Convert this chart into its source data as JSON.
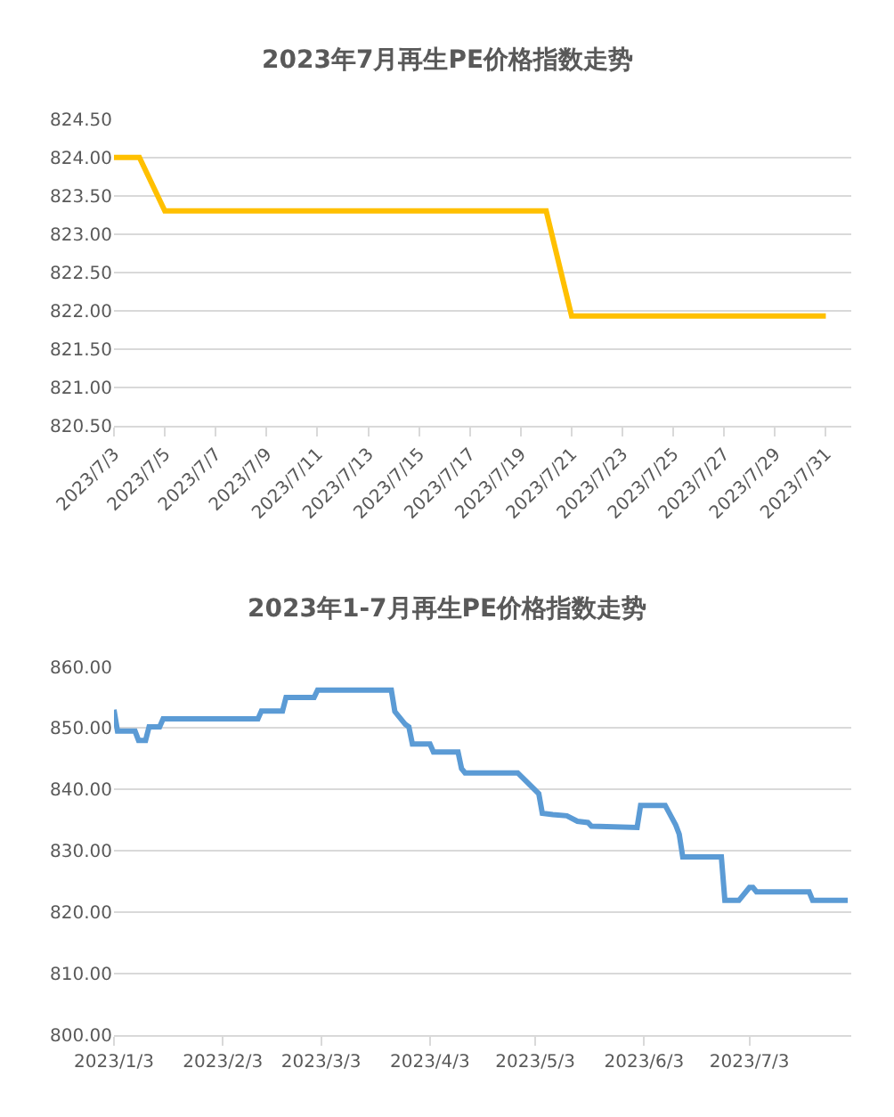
{
  "chart_data": [
    {
      "type": "line",
      "title": "2023年7月再生PE价格指数走势",
      "x": [
        "2023-07-03",
        "2023-07-04",
        "2023-07-05",
        "2023-07-06",
        "2023-07-07",
        "2023-07-10",
        "2023-07-11",
        "2023-07-12",
        "2023-07-13",
        "2023-07-14",
        "2023-07-17",
        "2023-07-18",
        "2023-07-19",
        "2023-07-20",
        "2023-07-21",
        "2023-07-24",
        "2023-07-25",
        "2023-07-26",
        "2023-07-27",
        "2023-07-28",
        "2023-07-31"
      ],
      "series": [
        {
          "color": "#ffc000",
          "values": [
            824.0,
            824.0,
            823.3,
            823.3,
            823.3,
            823.3,
            823.3,
            823.3,
            823.3,
            823.3,
            823.3,
            823.3,
            823.3,
            823.3,
            821.93,
            821.93,
            821.93,
            821.93,
            821.93,
            821.93,
            821.93
          ]
        }
      ],
      "xlim": [
        "2023-07-03",
        "2023-08-01"
      ],
      "xticks": [
        {
          "value": "2023-07-03",
          "label": "2023/7/3"
        },
        {
          "value": "2023-07-05",
          "label": "2023/7/5"
        },
        {
          "value": "2023-07-07",
          "label": "2023/7/7"
        },
        {
          "value": "2023-07-09",
          "label": "2023/7/9"
        },
        {
          "value": "2023-07-11",
          "label": "2023/7/11"
        },
        {
          "value": "2023-07-13",
          "label": "2023/7/13"
        },
        {
          "value": "2023-07-15",
          "label": "2023/7/15"
        },
        {
          "value": "2023-07-17",
          "label": "2023/7/17"
        },
        {
          "value": "2023-07-19",
          "label": "2023/7/19"
        },
        {
          "value": "2023-07-21",
          "label": "2023/7/21"
        },
        {
          "value": "2023-07-23",
          "label": "2023/7/23"
        },
        {
          "value": "2023-07-25",
          "label": "2023/7/25"
        },
        {
          "value": "2023-07-27",
          "label": "2023/7/27"
        },
        {
          "value": "2023-07-29",
          "label": "2023/7/29"
        },
        {
          "value": "2023-07-31",
          "label": "2023/7/31"
        }
      ],
      "ylim": [
        820.5,
        824.5
      ],
      "yticks": [
        {
          "value": 820.5,
          "label": "820.50"
        },
        {
          "value": 821.0,
          "label": "821.00"
        },
        {
          "value": 821.5,
          "label": "821.50"
        },
        {
          "value": 822.0,
          "label": "822.00"
        },
        {
          "value": 822.5,
          "label": "822.50"
        },
        {
          "value": 823.0,
          "label": "823.00"
        },
        {
          "value": 823.5,
          "label": "823.50"
        },
        {
          "value": 824.0,
          "label": "824.00"
        },
        {
          "value": 824.5,
          "label": "824.50"
        }
      ],
      "grid": "y",
      "marker": "none",
      "line_style": "solid"
    },
    {
      "type": "line",
      "title": "2023年1-7月再生PE价格指数走势",
      "x": [
        "2023-01-03",
        "2023-01-04",
        "2023-01-09",
        "2023-01-10",
        "2023-01-12",
        "2023-01-13",
        "2023-01-16",
        "2023-01-17",
        "2023-02-13",
        "2023-02-14",
        "2023-02-20",
        "2023-02-21",
        "2023-03-01",
        "2023-03-02",
        "2023-03-23",
        "2023-03-24",
        "2023-03-27",
        "2023-03-28",
        "2023-03-29",
        "2023-04-03",
        "2023-04-04",
        "2023-04-11",
        "2023-04-12",
        "2023-04-13",
        "2023-04-28",
        "2023-05-04",
        "2023-05-05",
        "2023-05-08",
        "2023-05-12",
        "2023-05-15",
        "2023-05-18",
        "2023-05-19",
        "2023-06-01",
        "2023-06-02",
        "2023-06-09",
        "2023-06-12",
        "2023-06-13",
        "2023-06-14",
        "2023-06-25",
        "2023-06-26",
        "2023-06-30",
        "2023-07-03",
        "2023-07-04",
        "2023-07-05",
        "2023-07-20",
        "2023-07-21",
        "2023-07-31"
      ],
      "series": [
        {
          "color": "#5b9bd5",
          "values": [
            853.0,
            849.5,
            849.5,
            848.0,
            848.0,
            850.2,
            850.2,
            851.5,
            851.5,
            852.8,
            852.8,
            855.0,
            855.0,
            856.2,
            856.2,
            852.7,
            850.6,
            850.2,
            847.4,
            847.4,
            846.1,
            846.1,
            843.4,
            842.7,
            842.7,
            839.3,
            836.1,
            835.9,
            835.7,
            834.8,
            834.6,
            834.0,
            833.8,
            837.4,
            837.4,
            834.2,
            832.7,
            829.0,
            829.0,
            821.9,
            821.9,
            824.0,
            824.0,
            823.3,
            823.3,
            821.9,
            821.9
          ]
        }
      ],
      "xlim": [
        "2023-01-03",
        "2023-08-01"
      ],
      "xticks": [
        {
          "value": "2023-01-03",
          "label": "2023/1/3"
        },
        {
          "value": "2023-02-03",
          "label": "2023/2/3"
        },
        {
          "value": "2023-03-03",
          "label": "2023/3/3"
        },
        {
          "value": "2023-04-03",
          "label": "2023/4/3"
        },
        {
          "value": "2023-05-03",
          "label": "2023/5/3"
        },
        {
          "value": "2023-06-03",
          "label": "2023/6/3"
        },
        {
          "value": "2023-07-03",
          "label": "2023/7/3"
        }
      ],
      "ylim": [
        800,
        860
      ],
      "yticks": [
        {
          "value": 800,
          "label": "800.00"
        },
        {
          "value": 810,
          "label": "810.00"
        },
        {
          "value": 820,
          "label": "820.00"
        },
        {
          "value": 830,
          "label": "830.00"
        },
        {
          "value": 840,
          "label": "840.00"
        },
        {
          "value": 850,
          "label": "850.00"
        },
        {
          "value": 860,
          "label": "860.00"
        }
      ],
      "grid": "y",
      "marker": "none",
      "line_style": "solid"
    }
  ]
}
